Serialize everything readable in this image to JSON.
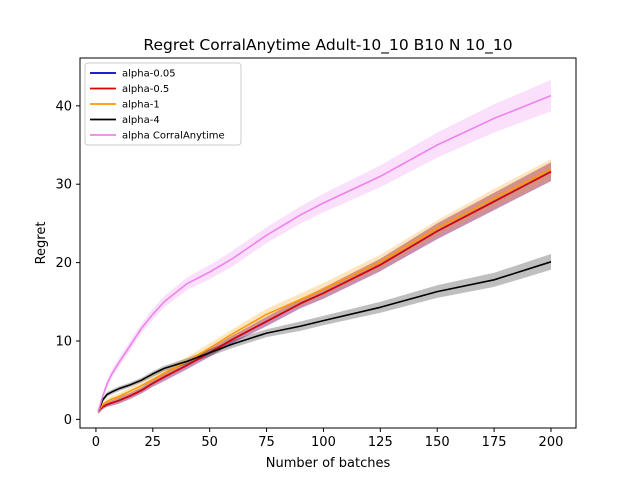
{
  "chart_data": {
    "type": "line",
    "title": "Regret CorralAnytime Adult-10_10 B10 N 10_10",
    "xlabel": "Number of batches",
    "ylabel": "Regret",
    "xlim": [
      -7,
      211
    ],
    "ylim": [
      -1.1,
      46.1
    ],
    "xticks": [
      0,
      25,
      50,
      75,
      100,
      125,
      150,
      175,
      200
    ],
    "yticks": [
      0,
      10,
      20,
      30,
      40
    ],
    "grid": false,
    "legend_position": "top-left",
    "x": [
      1,
      3,
      5,
      7,
      10,
      15,
      20,
      25,
      30,
      40,
      50,
      60,
      75,
      90,
      100,
      125,
      150,
      175,
      200
    ],
    "series": [
      {
        "name": "alpha-0.05",
        "color": "#0000cc",
        "values": [
          1.0,
          1.6,
          1.9,
          2.1,
          2.4,
          3.0,
          3.7,
          4.6,
          5.4,
          6.9,
          8.5,
          10.2,
          12.5,
          14.8,
          16.1,
          19.7,
          24.0,
          27.8,
          31.6
        ],
        "band": [
          0.3,
          0.3,
          0.3,
          0.35,
          0.4,
          0.4,
          0.4,
          0.45,
          0.5,
          0.5,
          0.5,
          0.5,
          0.6,
          0.6,
          0.7,
          0.8,
          1.0,
          1.1,
          1.2
        ]
      },
      {
        "name": "alpha-0.5",
        "color": "#dd0000",
        "values": [
          1.0,
          1.6,
          1.9,
          2.1,
          2.4,
          3.0,
          3.7,
          4.6,
          5.4,
          6.9,
          8.5,
          10.2,
          12.5,
          14.8,
          16.1,
          19.7,
          24.0,
          27.8,
          31.6
        ],
        "band": [
          0.3,
          0.3,
          0.3,
          0.35,
          0.4,
          0.4,
          0.4,
          0.45,
          0.5,
          0.5,
          0.5,
          0.5,
          0.6,
          0.6,
          0.7,
          0.8,
          1.0,
          1.1,
          1.2
        ]
      },
      {
        "name": "alpha-1",
        "color": "#ff9900",
        "values": [
          1.0,
          1.9,
          2.3,
          2.6,
          2.9,
          3.6,
          4.3,
          5.1,
          5.9,
          7.4,
          9.1,
          10.9,
          13.4,
          15.3,
          16.6,
          20.1,
          24.4,
          28.2,
          31.9
        ],
        "band": [
          0.3,
          0.3,
          0.35,
          0.4,
          0.4,
          0.45,
          0.5,
          0.5,
          0.5,
          0.55,
          0.6,
          0.6,
          0.7,
          0.8,
          0.8,
          0.9,
          1.0,
          1.2,
          1.3
        ]
      },
      {
        "name": "alpha-4",
        "color": "#000000",
        "values": [
          1.0,
          2.5,
          3.2,
          3.5,
          3.9,
          4.4,
          5.0,
          5.8,
          6.5,
          7.4,
          8.5,
          9.6,
          11.0,
          11.9,
          12.6,
          14.3,
          16.3,
          17.8,
          20.1
        ],
        "band": [
          0.3,
          0.3,
          0.3,
          0.3,
          0.3,
          0.3,
          0.3,
          0.35,
          0.35,
          0.4,
          0.45,
          0.5,
          0.5,
          0.6,
          0.6,
          0.7,
          0.8,
          0.9,
          1.0
        ]
      },
      {
        "name": "alpha CorralAnytime",
        "color": "#ee82ee",
        "values": [
          1.0,
          3.0,
          4.6,
          5.8,
          7.2,
          9.4,
          11.6,
          13.4,
          15.0,
          17.3,
          18.8,
          20.5,
          23.5,
          26.1,
          27.6,
          31.0,
          35.0,
          38.4,
          41.3
        ],
        "band": [
          0.3,
          0.4,
          0.5,
          0.5,
          0.6,
          0.6,
          0.6,
          0.7,
          0.7,
          0.8,
          0.9,
          1.0,
          1.0,
          1.1,
          1.2,
          1.4,
          1.6,
          1.8,
          2.0
        ]
      }
    ]
  }
}
